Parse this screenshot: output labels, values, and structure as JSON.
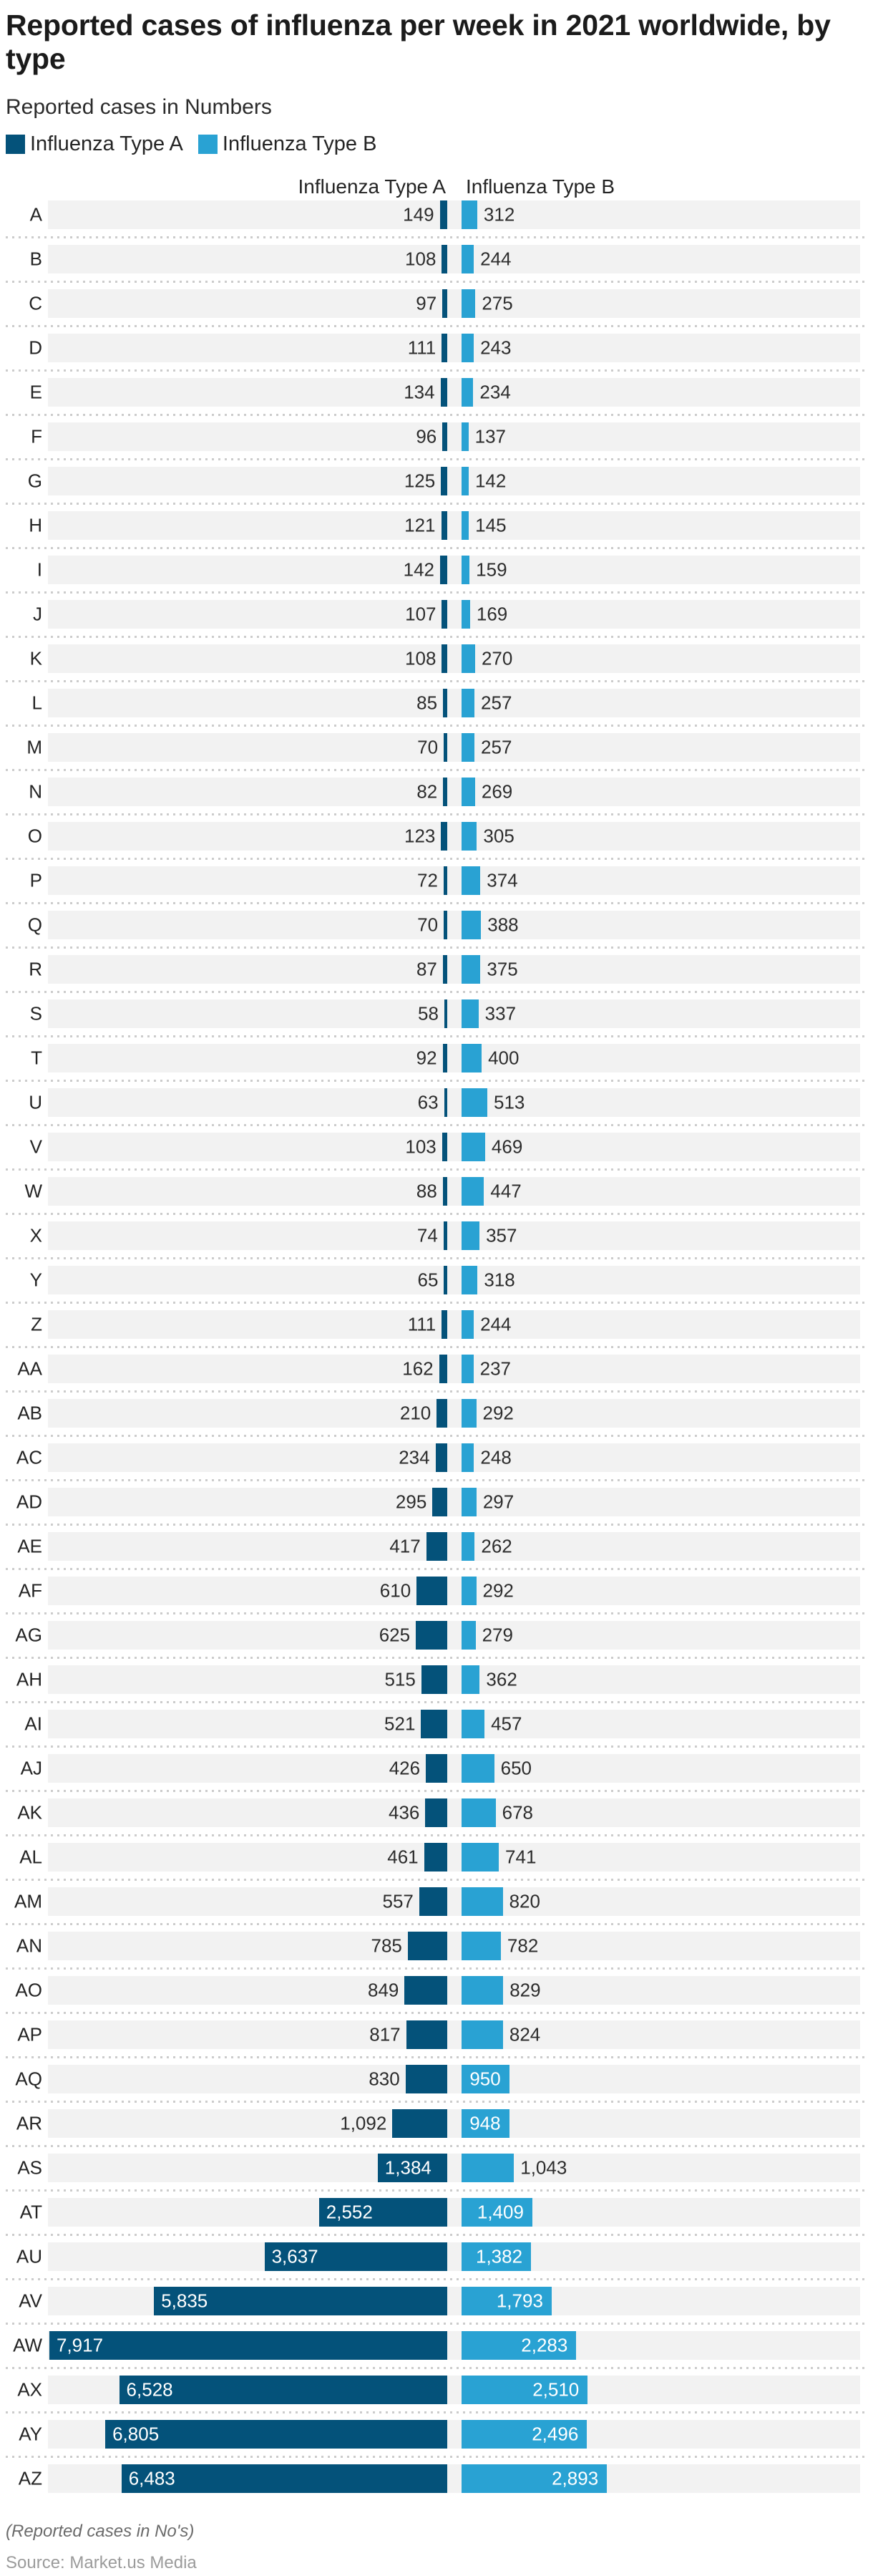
{
  "header": {
    "title": "Reported cases of influenza per week in 2021 worldwide, by type",
    "subtitle": "Reported cases in Numbers"
  },
  "legend": {
    "items": [
      {
        "label": "Influenza Type A",
        "color": "#04527a"
      },
      {
        "label": "Influenza Type B",
        "color": "#29a2d3"
      }
    ]
  },
  "column_headers": {
    "type_a": "Influenza Type A",
    "type_b": "Influenza Type B"
  },
  "chart_data": {
    "type": "bar",
    "variant": "diverging-horizontal-paired",
    "title": "Reported cases of influenza per week in 2021 worldwide, by type",
    "subtitle": "Reported cases in Numbers",
    "value_axis": "Reported cases in Numbers",
    "grid": false,
    "legend_position": "top-left",
    "max_value": 7917,
    "categories": [
      "A",
      "B",
      "C",
      "D",
      "E",
      "F",
      "G",
      "H",
      "I",
      "J",
      "K",
      "L",
      "M",
      "N",
      "O",
      "P",
      "Q",
      "R",
      "S",
      "T",
      "U",
      "V",
      "W",
      "X",
      "Y",
      "Z",
      "AA",
      "AB",
      "AC",
      "AD",
      "AE",
      "AF",
      "AG",
      "AH",
      "AI",
      "AJ",
      "AK",
      "AL",
      "AM",
      "AN",
      "AO",
      "AP",
      "AQ",
      "AR",
      "AS",
      "AT",
      "AU",
      "AV",
      "AW",
      "AX",
      "AY",
      "AZ"
    ],
    "series": [
      {
        "name": "Influenza Type A",
        "color": "#04527a",
        "direction": "left",
        "values": [
          149,
          108,
          97,
          111,
          134,
          96,
          125,
          121,
          142,
          107,
          108,
          85,
          70,
          82,
          123,
          72,
          70,
          87,
          58,
          92,
          63,
          103,
          88,
          74,
          65,
          111,
          162,
          210,
          234,
          295,
          417,
          610,
          625,
          515,
          521,
          426,
          436,
          461,
          557,
          785,
          849,
          817,
          830,
          1092,
          1384,
          2552,
          3637,
          5835,
          7917,
          6528,
          6805,
          6483
        ]
      },
      {
        "name": "Influenza Type B",
        "color": "#29a2d3",
        "direction": "right",
        "values": [
          312,
          244,
          275,
          243,
          234,
          137,
          142,
          145,
          159,
          169,
          270,
          257,
          257,
          269,
          305,
          374,
          388,
          375,
          337,
          400,
          513,
          469,
          447,
          357,
          318,
          244,
          237,
          292,
          248,
          297,
          262,
          292,
          279,
          362,
          457,
          650,
          678,
          741,
          820,
          782,
          829,
          824,
          950,
          948,
          1043,
          1409,
          1382,
          1793,
          2283,
          2510,
          2496,
          2893
        ]
      }
    ]
  },
  "colors": {
    "type_a": "#04527a",
    "type_b": "#29a2d3",
    "row_band": "#f2f2f2",
    "separator": "#cccccc"
  },
  "footer": {
    "note": "(Reported cases in No's)",
    "source": "Source: Market.us Media"
  }
}
